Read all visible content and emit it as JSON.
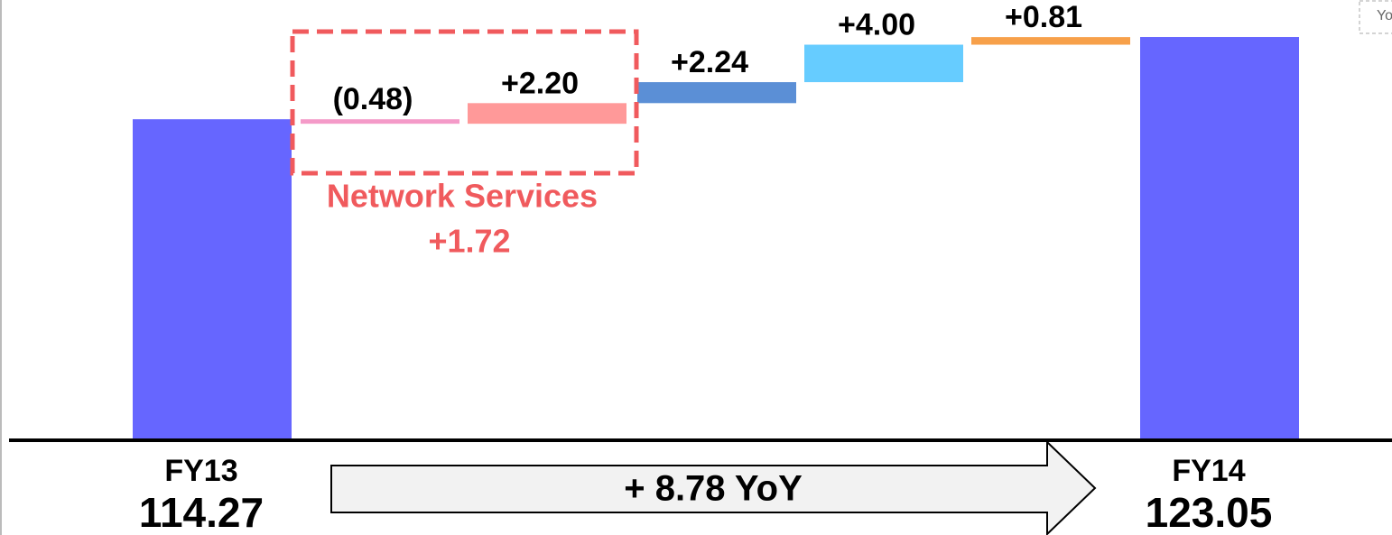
{
  "chart_data": {
    "type": "waterfall",
    "categories": [
      "FY13",
      null,
      null,
      null,
      null,
      null,
      "FY14"
    ],
    "values": [
      114.27,
      -0.48,
      2.2,
      2.24,
      4.0,
      0.81,
      123.05
    ],
    "value_labels": [
      "114.27",
      "(0.48)",
      "+2.20",
      "+2.24",
      "+4.00",
      "+0.81",
      "123.05"
    ],
    "measures": [
      "total",
      "relative",
      "relative",
      "relative",
      "relative",
      "relative",
      "total"
    ],
    "colors": [
      "#6666ff",
      "#f49ac8",
      "#ff9999",
      "#5b8fd6",
      "#66ccff",
      "#f7a04a",
      "#6666ff"
    ],
    "ylim": [
      80,
      127
    ],
    "group": {
      "name": "Network Services",
      "value": 1.72,
      "value_label": "+1.72",
      "color": "#f05a5d"
    },
    "change": {
      "value": 8.78,
      "value_label": "+ 8.78 YoY"
    },
    "corner_label": "Yo"
  }
}
